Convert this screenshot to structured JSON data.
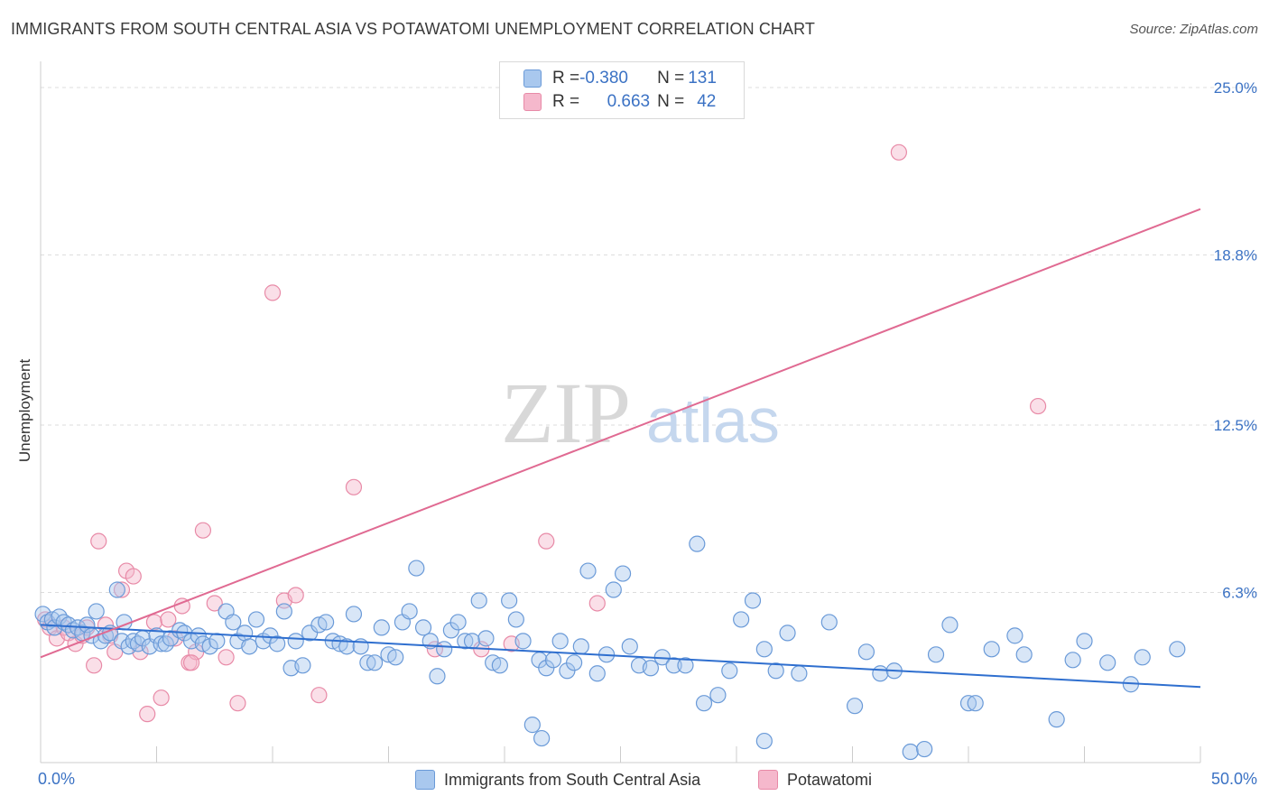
{
  "title": "IMMIGRANTS FROM SOUTH CENTRAL ASIA VS POTAWATOMI UNEMPLOYMENT CORRELATION CHART",
  "source": "Source: ZipAtlas.com",
  "watermark": {
    "zip": "ZIP",
    "atlas": "atlas"
  },
  "legend_top": {
    "rows": [
      {
        "r_label": "R = ",
        "r_value": "-0.380",
        "n_label": "N = ",
        "n_value": "131"
      },
      {
        "r_label": "R = ",
        "r_value": "0.663",
        "n_label": "N = ",
        "n_value": "42"
      }
    ]
  },
  "colors": {
    "blue_fill": "#a9c8ee",
    "blue_stroke": "#6a9ad8",
    "blue_line": "#2f6fcf",
    "pink_fill": "#f5b8cc",
    "pink_stroke": "#e88aa7",
    "pink_line": "#e06a92",
    "axis_text": "#3b72c4",
    "grid": "#dddddd"
  },
  "chart_data": {
    "type": "scatter",
    "title": "IMMIGRANTS FROM SOUTH CENTRAL ASIA VS POTAWATOMI UNEMPLOYMENT CORRELATION CHART",
    "xlabel": "",
    "ylabel": "Unemployment",
    "xlim": [
      0,
      50
    ],
    "ylim": [
      0,
      25
    ],
    "x_tick_labels": [
      "0.0%",
      "50.0%"
    ],
    "y_ticks": [
      6.3,
      12.5,
      18.8,
      25.0
    ],
    "y_tick_labels": [
      "6.3%",
      "12.5%",
      "18.8%",
      "25.0%"
    ],
    "grid": true,
    "legend_position": "bottom",
    "series": [
      {
        "name": "Immigrants from South Central Asia",
        "color": "#6a9ad8",
        "trend": {
          "x": [
            0,
            50
          ],
          "y": [
            5.1,
            2.8
          ]
        },
        "points": [
          [
            0.1,
            5.5
          ],
          [
            0.3,
            5.2
          ],
          [
            0.5,
            5.3
          ],
          [
            0.6,
            5.0
          ],
          [
            0.8,
            5.4
          ],
          [
            1.0,
            5.2
          ],
          [
            1.2,
            5.1
          ],
          [
            1.4,
            4.9
          ],
          [
            1.6,
            5.0
          ],
          [
            1.8,
            4.8
          ],
          [
            2.0,
            5.1
          ],
          [
            2.2,
            4.7
          ],
          [
            2.4,
            5.6
          ],
          [
            2.6,
            4.5
          ],
          [
            2.8,
            4.7
          ],
          [
            3.0,
            4.8
          ],
          [
            3.3,
            6.4
          ],
          [
            3.5,
            4.5
          ],
          [
            3.8,
            4.3
          ],
          [
            4.0,
            4.5
          ],
          [
            4.2,
            4.4
          ],
          [
            4.4,
            4.6
          ],
          [
            4.7,
            4.3
          ],
          [
            5.0,
            4.7
          ],
          [
            5.2,
            4.4
          ],
          [
            5.4,
            4.4
          ],
          [
            5.6,
            4.6
          ],
          [
            6.0,
            4.9
          ],
          [
            6.2,
            4.8
          ],
          [
            6.5,
            4.5
          ],
          [
            6.8,
            4.7
          ],
          [
            7.0,
            4.4
          ],
          [
            7.3,
            4.3
          ],
          [
            7.6,
            4.5
          ],
          [
            8.0,
            5.6
          ],
          [
            8.3,
            5.2
          ],
          [
            8.5,
            4.5
          ],
          [
            8.8,
            4.8
          ],
          [
            9.0,
            4.3
          ],
          [
            9.3,
            5.3
          ],
          [
            9.6,
            4.5
          ],
          [
            9.9,
            4.7
          ],
          [
            10.2,
            4.4
          ],
          [
            10.5,
            5.6
          ],
          [
            10.8,
            3.5
          ],
          [
            11.0,
            4.5
          ],
          [
            11.3,
            3.6
          ],
          [
            11.6,
            4.8
          ],
          [
            12.0,
            5.1
          ],
          [
            12.3,
            5.2
          ],
          [
            12.6,
            4.5
          ],
          [
            12.9,
            4.4
          ],
          [
            13.2,
            4.3
          ],
          [
            13.5,
            5.5
          ],
          [
            13.8,
            4.3
          ],
          [
            14.1,
            3.7
          ],
          [
            14.4,
            3.7
          ],
          [
            14.7,
            5.0
          ],
          [
            15.0,
            4.0
          ],
          [
            15.3,
            3.9
          ],
          [
            15.6,
            5.2
          ],
          [
            15.9,
            5.6
          ],
          [
            16.2,
            7.2
          ],
          [
            16.5,
            5.0
          ],
          [
            16.8,
            4.5
          ],
          [
            17.1,
            3.2
          ],
          [
            17.4,
            4.2
          ],
          [
            17.7,
            4.9
          ],
          [
            18.0,
            5.2
          ],
          [
            18.3,
            4.5
          ],
          [
            18.6,
            4.5
          ],
          [
            18.9,
            6.0
          ],
          [
            19.2,
            4.6
          ],
          [
            19.5,
            3.7
          ],
          [
            19.8,
            3.6
          ],
          [
            20.2,
            6.0
          ],
          [
            20.5,
            5.3
          ],
          [
            20.8,
            4.5
          ],
          [
            21.2,
            1.4
          ],
          [
            21.5,
            3.8
          ],
          [
            21.8,
            3.5
          ],
          [
            22.1,
            3.8
          ],
          [
            22.4,
            4.5
          ],
          [
            22.7,
            3.4
          ],
          [
            23.0,
            3.7
          ],
          [
            23.3,
            4.3
          ],
          [
            23.6,
            7.1
          ],
          [
            24.0,
            3.3
          ],
          [
            24.4,
            4.0
          ],
          [
            24.7,
            6.4
          ],
          [
            25.1,
            7.0
          ],
          [
            25.4,
            4.3
          ],
          [
            25.8,
            3.6
          ],
          [
            26.3,
            3.5
          ],
          [
            26.8,
            3.9
          ],
          [
            27.3,
            3.6
          ],
          [
            27.8,
            3.6
          ],
          [
            28.3,
            8.1
          ],
          [
            28.6,
            2.2
          ],
          [
            29.2,
            2.5
          ],
          [
            29.7,
            3.4
          ],
          [
            30.2,
            5.3
          ],
          [
            30.7,
            6.0
          ],
          [
            31.2,
            4.2
          ],
          [
            31.7,
            3.4
          ],
          [
            32.2,
            4.8
          ],
          [
            32.7,
            3.3
          ],
          [
            34.0,
            5.2
          ],
          [
            35.1,
            2.1
          ],
          [
            35.6,
            4.1
          ],
          [
            36.2,
            3.3
          ],
          [
            36.8,
            3.4
          ],
          [
            37.5,
            0.4
          ],
          [
            38.6,
            4.0
          ],
          [
            39.2,
            5.1
          ],
          [
            40.0,
            2.2
          ],
          [
            40.3,
            2.2
          ],
          [
            41.0,
            4.2
          ],
          [
            42.0,
            4.7
          ],
          [
            42.4,
            4.0
          ],
          [
            43.8,
            1.6
          ],
          [
            44.5,
            3.8
          ],
          [
            45.0,
            4.5
          ],
          [
            46.0,
            3.7
          ],
          [
            47.0,
            2.9
          ],
          [
            47.5,
            3.9
          ],
          [
            49.0,
            4.2
          ],
          [
            21.6,
            0.9
          ],
          [
            31.2,
            0.8
          ],
          [
            38.1,
            0.5
          ],
          [
            3.6,
            5.2
          ]
        ]
      },
      {
        "name": "Potawatomi",
        "color": "#e88aa7",
        "trend": {
          "x": [
            0,
            50
          ],
          "y": [
            3.9,
            20.5
          ]
        },
        "points": [
          [
            0.2,
            5.3
          ],
          [
            0.4,
            5.0
          ],
          [
            0.7,
            4.6
          ],
          [
            1.0,
            5.0
          ],
          [
            1.2,
            4.8
          ],
          [
            1.5,
            4.4
          ],
          [
            1.8,
            4.7
          ],
          [
            2.0,
            5.0
          ],
          [
            2.3,
            3.6
          ],
          [
            2.5,
            8.2
          ],
          [
            2.8,
            5.1
          ],
          [
            3.0,
            4.7
          ],
          [
            3.2,
            4.1
          ],
          [
            3.5,
            6.4
          ],
          [
            3.7,
            7.1
          ],
          [
            4.0,
            6.9
          ],
          [
            4.3,
            4.1
          ],
          [
            4.6,
            1.8
          ],
          [
            4.9,
            5.2
          ],
          [
            5.2,
            2.4
          ],
          [
            5.5,
            5.3
          ],
          [
            5.8,
            4.6
          ],
          [
            6.1,
            5.8
          ],
          [
            6.4,
            3.7
          ],
          [
            6.7,
            4.1
          ],
          [
            7.0,
            8.6
          ],
          [
            7.5,
            5.9
          ],
          [
            8.0,
            3.9
          ],
          [
            8.5,
            2.2
          ],
          [
            10.0,
            17.4
          ],
          [
            10.5,
            6.0
          ],
          [
            11.0,
            6.2
          ],
          [
            12.0,
            2.5
          ],
          [
            13.5,
            10.2
          ],
          [
            17.0,
            4.2
          ],
          [
            19.0,
            4.2
          ],
          [
            20.3,
            4.4
          ],
          [
            21.8,
            8.2
          ],
          [
            24.0,
            5.9
          ],
          [
            37.0,
            22.6
          ],
          [
            43.0,
            13.2
          ],
          [
            6.5,
            3.7
          ]
        ]
      }
    ]
  }
}
